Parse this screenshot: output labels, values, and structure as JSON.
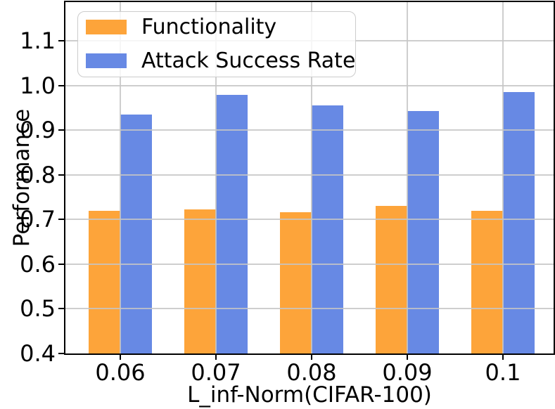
{
  "chart_data": {
    "type": "bar",
    "title": "",
    "xlabel": "L_inf-Norm(CIFAR-100)",
    "ylabel": "Performance",
    "categories": [
      "0.06",
      "0.07",
      "0.08",
      "0.09",
      "0.1"
    ],
    "series": [
      {
        "name": "Functionality",
        "color": "#FDA43A",
        "values": [
          0.72,
          0.722,
          0.717,
          0.73,
          0.72
        ]
      },
      {
        "name": "Attack Success Rate",
        "color": "#6789E4",
        "values": [
          0.935,
          0.98,
          0.956,
          0.943,
          0.985
        ]
      }
    ],
    "ylim": [
      0.4,
      1.187
    ],
    "yticks": [
      0.4,
      0.5,
      0.6,
      0.7,
      0.8,
      0.9,
      1.0,
      1.1
    ],
    "ytick_format_decimals": 1,
    "grid": true,
    "grid_color": "#c5c5c5",
    "axis_color": "#000000",
    "background": "#ffffff",
    "legend_position": "upper-left"
  }
}
